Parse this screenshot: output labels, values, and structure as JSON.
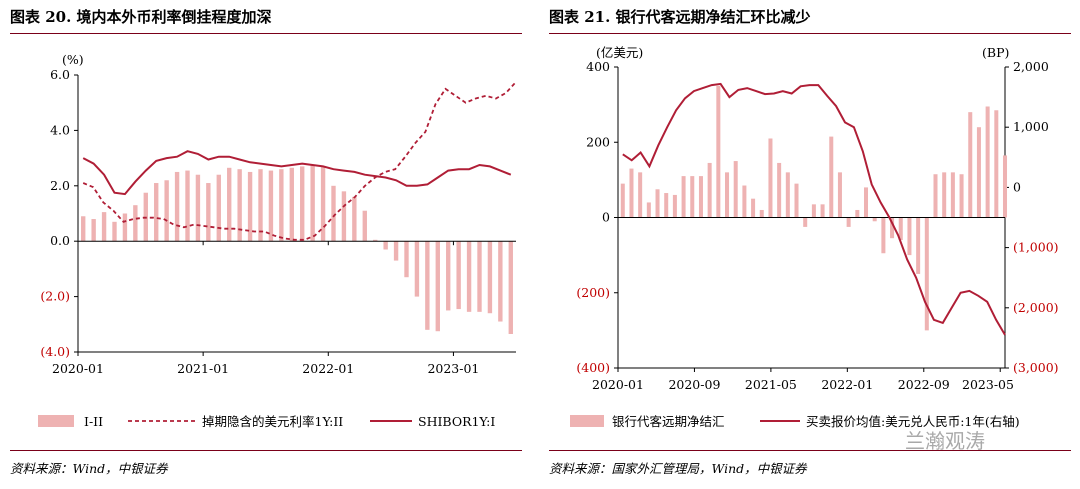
{
  "panels": {
    "left": {
      "title": "图表 20.  境内本外币利率倒挂程度加深",
      "source": "资料来源：Wind，中银证券"
    },
    "right": {
      "title": "图表 21.  银行代客远期净结汇环比减少",
      "source": "资料来源：国家外汇管理局，Wind，中银证券"
    }
  },
  "watermark": "兰瀚观涛",
  "chart_data": [
    {
      "type": "bar+line",
      "title": "境内本外币利率倒挂程度加深",
      "ylabel": "(%)",
      "ylim": [
        -4.0,
        6.0
      ],
      "yticks": [
        "6.0",
        "4.0",
        "2.0",
        "0.0",
        "(2.0)",
        "(4.0)"
      ],
      "ytick_values": [
        6,
        4,
        2,
        0,
        -2,
        -4
      ],
      "xlim": [
        0,
        42
      ],
      "xticks": [
        {
          "label": "2020-01",
          "i": 0
        },
        {
          "label": "2021-01",
          "i": 12
        },
        {
          "label": "2022-01",
          "i": 24
        },
        {
          "label": "2023-01",
          "i": 36
        }
      ],
      "series": [
        {
          "name": "I-II",
          "kind": "bar",
          "values": [
            0.9,
            0.8,
            1.05,
            0.7,
            1.0,
            1.3,
            1.75,
            2.1,
            2.2,
            2.5,
            2.55,
            2.4,
            2.1,
            2.4,
            2.65,
            2.6,
            2.5,
            2.6,
            2.55,
            2.6,
            2.65,
            2.7,
            2.75,
            2.7,
            2.0,
            1.8,
            1.6,
            1.1,
            0.05,
            -0.3,
            -0.7,
            -1.3,
            -2.0,
            -3.2,
            -3.25,
            -2.5,
            -2.45,
            -2.55,
            -2.55,
            -2.6,
            -2.9,
            -3.35
          ]
        },
        {
          "name": "掉期隐含的美元利率1Y:II",
          "kind": "dashed-line",
          "values": [
            2.1,
            1.95,
            1.4,
            1.1,
            0.7,
            0.8,
            0.85,
            0.85,
            0.8,
            0.6,
            0.5,
            0.6,
            0.55,
            0.5,
            0.45,
            0.45,
            0.4,
            0.35,
            0.35,
            0.2,
            0.1,
            0.05,
            0.05,
            0.2,
            0.55,
            0.95,
            1.3,
            1.6,
            2.0,
            2.3,
            2.5,
            2.6,
            3.05,
            3.55,
            3.95,
            4.95,
            5.5,
            5.25,
            5.0,
            5.15,
            5.25,
            5.15,
            5.35,
            5.75
          ]
        },
        {
          "name": "SHIBOR1Y:I",
          "kind": "line",
          "values": [
            3.0,
            2.8,
            2.4,
            1.75,
            1.7,
            2.15,
            2.55,
            2.9,
            3.0,
            3.05,
            3.25,
            3.15,
            2.95,
            3.05,
            3.05,
            2.95,
            2.85,
            2.8,
            2.75,
            2.7,
            2.75,
            2.8,
            2.75,
            2.7,
            2.6,
            2.55,
            2.5,
            2.4,
            2.35,
            2.3,
            2.2,
            2.0,
            2.0,
            2.05,
            2.3,
            2.55,
            2.6,
            2.6,
            2.75,
            2.7,
            2.55,
            2.4
          ]
        }
      ]
    },
    {
      "type": "bar+line",
      "title": "银行代客远期净结汇环比减少",
      "ylabel": "(亿美元)",
      "ylabel_right": "(BP)",
      "ylim": [
        -400,
        400
      ],
      "ylim_right": [
        -3000,
        2000
      ],
      "yticks": [
        "400",
        "200",
        "0",
        "(200)",
        "(400)"
      ],
      "ytick_values": [
        400,
        200,
        0,
        -200,
        -400
      ],
      "yticks_right": [
        "2,000",
        "1,000",
        "0",
        "(1,000)",
        "(2,000)",
        "(3,000)"
      ],
      "ytick_values_right": [
        2000,
        1000,
        0,
        -1000,
        -2000,
        -3000
      ],
      "xlim": [
        0,
        40.5
      ],
      "xticks": [
        {
          "label": "2020-01",
          "i": 0
        },
        {
          "label": "2020-09",
          "i": 8
        },
        {
          "label": "2021-05",
          "i": 16
        },
        {
          "label": "2022-01",
          "i": 24
        },
        {
          "label": "2022-09",
          "i": 32
        },
        {
          "label": "2023-05",
          "i": 40
        }
      ],
      "series": [
        {
          "name": "银行代客远期净结汇",
          "kind": "bar",
          "values": [
            90,
            130,
            120,
            40,
            75,
            65,
            60,
            110,
            110,
            110,
            145,
            350,
            120,
            150,
            85,
            50,
            20,
            210,
            145,
            120,
            90,
            -25,
            35,
            35,
            215,
            120,
            -25,
            20,
            80,
            -10,
            -95,
            -55,
            -60,
            -100,
            -150,
            -300,
            115,
            120,
            120,
            115,
            280,
            240,
            295,
            285,
            165
          ]
        },
        {
          "name": "买卖报价均值:美元兑人民币:1年(右轴)",
          "kind": "line",
          "axis": "right",
          "values": [
            550,
            450,
            580,
            350,
            700,
            1000,
            1280,
            1480,
            1600,
            1650,
            1700,
            1720,
            1500,
            1620,
            1650,
            1600,
            1550,
            1560,
            1600,
            1560,
            1680,
            1700,
            1700,
            1520,
            1350,
            1080,
            1000,
            600,
            50,
            -250,
            -500,
            -800,
            -1200,
            -1500,
            -1900,
            -2200,
            -2250,
            -2000,
            -1750,
            -1720,
            -1800,
            -1900,
            -2200,
            -2450
          ]
        }
      ]
    }
  ]
}
